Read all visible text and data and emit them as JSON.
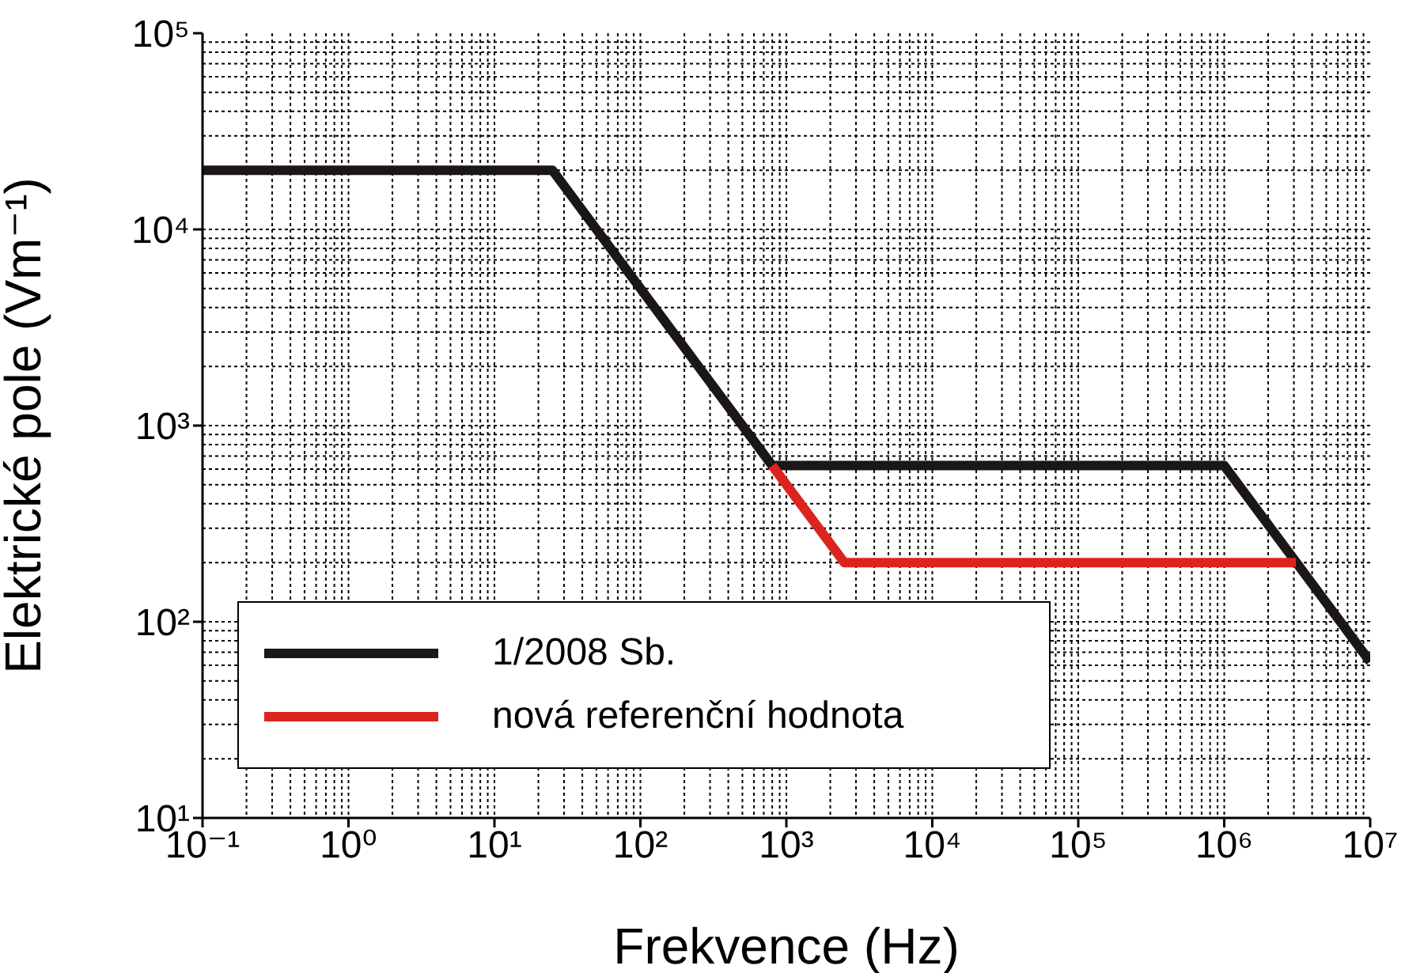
{
  "chart_data": {
    "type": "line",
    "xlabel": "Frekvence (Hz)",
    "ylabel": "Elektrické pole (Vm⁻¹)",
    "log": "xy",
    "grid": true,
    "legend": "bottom left",
    "line_style": "solid",
    "marker": "none",
    "xlim": [
      0.1,
      10000000
    ],
    "ylim": [
      10,
      100000
    ],
    "xticks": [
      {
        "value": 0.1,
        "label": "10⁻¹"
      },
      {
        "value": 1,
        "label": "10⁰"
      },
      {
        "value": 10,
        "label": "10¹"
      },
      {
        "value": 100,
        "label": "10²"
      },
      {
        "value": 1000,
        "label": "10³"
      },
      {
        "value": 10000,
        "label": "10⁴"
      },
      {
        "value": 100000,
        "label": "10⁵"
      },
      {
        "value": 1000000,
        "label": "10⁶"
      },
      {
        "value": 10000000,
        "label": "10⁷"
      }
    ],
    "yticks": [
      {
        "value": 10,
        "label": "10¹"
      },
      {
        "value": 100,
        "label": "10²"
      },
      {
        "value": 1000,
        "label": "10³"
      },
      {
        "value": 10000,
        "label": "10⁴"
      },
      {
        "value": 100000,
        "label": "10⁵"
      }
    ],
    "series": [
      {
        "name": "1/2008 Sb.",
        "color": "#1a1716",
        "x": [
          0.1,
          25,
          800,
          1000000,
          10000000
        ],
        "values": [
          20000,
          20000,
          625,
          625,
          62.5
        ]
      },
      {
        "name": "nová referenční hodnota",
        "color": "#dc241f",
        "x": [
          800,
          2500,
          3100000
        ],
        "values": [
          625,
          200,
          200
        ]
      }
    ]
  }
}
